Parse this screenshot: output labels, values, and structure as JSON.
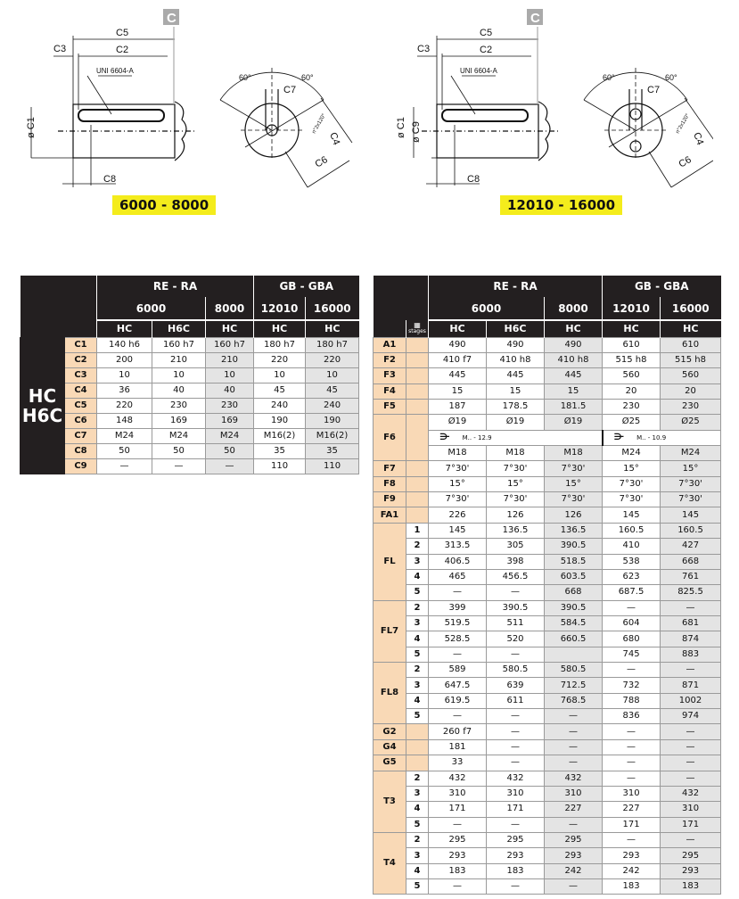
{
  "drawings": [
    {
      "ref": "C",
      "labels": {
        "c5": "C5",
        "c3": "C3",
        "c2": "C2",
        "uni": "UNI 6604-A",
        "c1": "ø C1",
        "c8": "C8",
        "a1": "60°",
        "a2": "60°",
        "c7": "C7",
        "c4": "C4",
        "c6": "C6",
        "holes": "n°2x120°"
      },
      "badge": "6000 - 8000"
    },
    {
      "ref": "C",
      "labels": {
        "c5": "C5",
        "c3": "C3",
        "c2": "C2",
        "uni": "UNI 6604-A",
        "c1": "ø C1",
        "c9": "ø C9",
        "c8": "C8",
        "a1": "60°",
        "a2": "60°",
        "c7": "C7",
        "c4": "C4",
        "c6": "C6",
        "holes": "n°2x120°"
      },
      "badge": "12010 - 16000"
    }
  ],
  "header": {
    "groups": [
      "RE - RA",
      "GB - GBA"
    ],
    "models": [
      "6000",
      "8000",
      "12010",
      "16000"
    ],
    "types": [
      "HC",
      "H6C",
      "HC",
      "HC",
      "HC"
    ],
    "stages_icon": "stages-icon",
    "stages_label": "stages"
  },
  "colors": {
    "header": "#231f20",
    "label": "#f9d9b6",
    "shade": "#e4e4e4",
    "badge": "#f4ec1c"
  },
  "left_table": {
    "group_label": "HC H6C",
    "rows": [
      {
        "label": "C1",
        "values": [
          "140 h6",
          "160 h7",
          "160 h7",
          "180 h7",
          "180 h7"
        ]
      },
      {
        "label": "C2",
        "values": [
          "200",
          "210",
          "210",
          "220",
          "220"
        ]
      },
      {
        "label": "C3",
        "values": [
          "10",
          "10",
          "10",
          "10",
          "10"
        ]
      },
      {
        "label": "C4",
        "values": [
          "36",
          "40",
          "40",
          "45",
          "45"
        ]
      },
      {
        "label": "C5",
        "values": [
          "220",
          "230",
          "230",
          "240",
          "240"
        ]
      },
      {
        "label": "C6",
        "values": [
          "148",
          "169",
          "169",
          "190",
          "190"
        ]
      },
      {
        "label": "C7",
        "values": [
          "M24",
          "M24",
          "M24",
          "M16(2)",
          "M16(2)"
        ]
      },
      {
        "label": "C8",
        "values": [
          "50",
          "50",
          "50",
          "35",
          "35"
        ]
      },
      {
        "label": "C9",
        "values": [
          "—",
          "—",
          "—",
          "110",
          "110"
        ]
      }
    ]
  },
  "right_table": {
    "groups": [
      {
        "label": "A1",
        "rows": [
          {
            "stage": "",
            "values": [
              "490",
              "490",
              "490",
              "610",
              "610"
            ]
          }
        ]
      },
      {
        "label": "F2",
        "rows": [
          {
            "stage": "",
            "values": [
              "410 f7",
              "410 h8",
              "410 h8",
              "515 h8",
              "515 h8"
            ]
          }
        ]
      },
      {
        "label": "F3",
        "rows": [
          {
            "stage": "",
            "values": [
              "445",
              "445",
              "445",
              "560",
              "560"
            ]
          }
        ]
      },
      {
        "label": "F4",
        "rows": [
          {
            "stage": "",
            "values": [
              "15",
              "15",
              "15",
              "20",
              "20"
            ]
          }
        ]
      },
      {
        "label": "F5",
        "rows": [
          {
            "stage": "",
            "values": [
              "187",
              "178.5",
              "181.5",
              "230",
              "230"
            ]
          }
        ]
      },
      {
        "label": "F6",
        "rows": [
          {
            "stage": "",
            "values": [
              "Ø19",
              "Ø19",
              "Ø19",
              "Ø25",
              "Ø25"
            ]
          },
          {
            "stage": "",
            "notes": [
              "M.. - 12.9",
              "M.. - 10.9"
            ]
          },
          {
            "stage": "",
            "values": [
              "M18",
              "M18",
              "M18",
              "M24",
              "M24"
            ]
          }
        ]
      },
      {
        "label": "F7",
        "rows": [
          {
            "stage": "",
            "values": [
              "7°30'",
              "7°30'",
              "7°30'",
              "15°",
              "15°"
            ]
          }
        ]
      },
      {
        "label": "F8",
        "rows": [
          {
            "stage": "",
            "values": [
              "15°",
              "15°",
              "15°",
              "7°30'",
              "7°30'"
            ]
          }
        ]
      },
      {
        "label": "F9",
        "rows": [
          {
            "stage": "",
            "values": [
              "7°30'",
              "7°30'",
              "7°30'",
              "7°30'",
              "7°30'"
            ]
          }
        ]
      },
      {
        "label": "FA1",
        "rows": [
          {
            "stage": "",
            "values": [
              "226",
              "126",
              "126",
              "145",
              "145"
            ]
          }
        ]
      },
      {
        "label": "FL",
        "rows": [
          {
            "stage": "1",
            "values": [
              "145",
              "136.5",
              "136.5",
              "160.5",
              "160.5"
            ]
          },
          {
            "stage": "2",
            "values": [
              "313.5",
              "305",
              "390.5",
              "410",
              "427"
            ]
          },
          {
            "stage": "3",
            "values": [
              "406.5",
              "398",
              "518.5",
              "538",
              "668"
            ]
          },
          {
            "stage": "4",
            "values": [
              "465",
              "456.5",
              "603.5",
              "623",
              "761"
            ]
          },
          {
            "stage": "5",
            "values": [
              "—",
              "—",
              "668",
              "687.5",
              "825.5"
            ]
          }
        ]
      },
      {
        "label": "FL7",
        "rows": [
          {
            "stage": "2",
            "values": [
              "399",
              "390.5",
              "390.5",
              "—",
              "—"
            ]
          },
          {
            "stage": "3",
            "values": [
              "519.5",
              "511",
              "584.5",
              "604",
              "681"
            ]
          },
          {
            "stage": "4",
            "values": [
              "528.5",
              "520",
              "660.5",
              "680",
              "874"
            ]
          },
          {
            "stage": "5",
            "values": [
              "—",
              "—",
              "",
              "745",
              "883"
            ]
          }
        ]
      },
      {
        "label": "FL8",
        "rows": [
          {
            "stage": "2",
            "values": [
              "589",
              "580.5",
              "580.5",
              "—",
              "—"
            ]
          },
          {
            "stage": "3",
            "values": [
              "647.5",
              "639",
              "712.5",
              "732",
              "871"
            ]
          },
          {
            "stage": "4",
            "values": [
              "619.5",
              "611",
              "768.5",
              "788",
              "1002"
            ]
          },
          {
            "stage": "5",
            "values": [
              "—",
              "—",
              "—",
              "836",
              "974"
            ]
          }
        ]
      },
      {
        "label": "G2",
        "rows": [
          {
            "stage": "",
            "values": [
              "260 f7",
              "—",
              "—",
              "—",
              "—"
            ]
          }
        ]
      },
      {
        "label": "G4",
        "rows": [
          {
            "stage": "",
            "values": [
              "181",
              "—",
              "—",
              "—",
              "—"
            ]
          }
        ]
      },
      {
        "label": "G5",
        "rows": [
          {
            "stage": "",
            "values": [
              "33",
              "—",
              "—",
              "—",
              "—"
            ]
          }
        ]
      },
      {
        "label": "T3",
        "rows": [
          {
            "stage": "2",
            "values": [
              "432",
              "432",
              "432",
              "—",
              "—"
            ]
          },
          {
            "stage": "3",
            "values": [
              "310",
              "310",
              "310",
              "310",
              "432"
            ]
          },
          {
            "stage": "4",
            "values": [
              "171",
              "171",
              "227",
              "227",
              "310"
            ]
          },
          {
            "stage": "5",
            "values": [
              "—",
              "—",
              "—",
              "171",
              "171"
            ]
          }
        ]
      },
      {
        "label": "T4",
        "rows": [
          {
            "stage": "2",
            "values": [
              "295",
              "295",
              "295",
              "—",
              "—"
            ]
          },
          {
            "stage": "3",
            "values": [
              "293",
              "293",
              "293",
              "293",
              "295"
            ]
          },
          {
            "stage": "4",
            "values": [
              "183",
              "183",
              "242",
              "242",
              "293"
            ]
          },
          {
            "stage": "5",
            "values": [
              "—",
              "—",
              "—",
              "183",
              "183"
            ]
          }
        ]
      }
    ]
  }
}
